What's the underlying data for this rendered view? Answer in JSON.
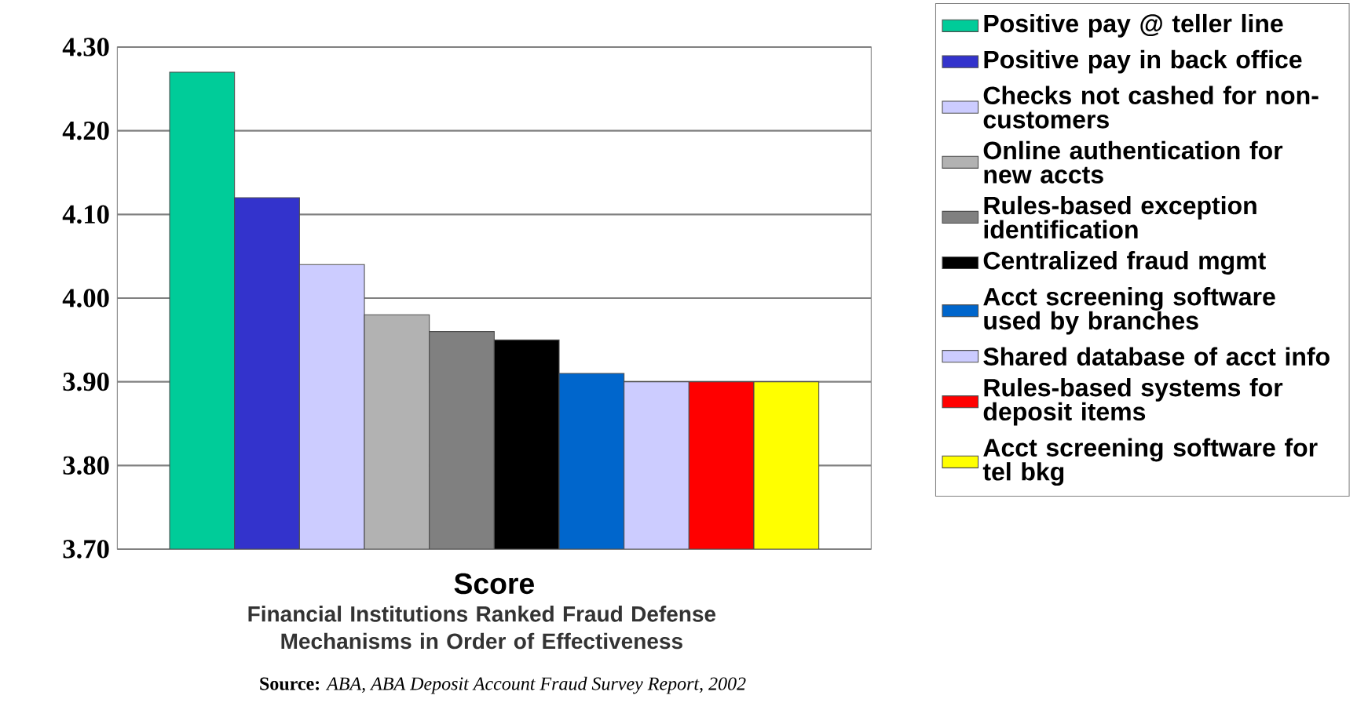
{
  "chart_data": {
    "type": "bar",
    "categories": [
      "Score"
    ],
    "series": [
      {
        "name": "Positive pay @ teller line",
        "color": "#00cc99",
        "values": [
          4.27
        ]
      },
      {
        "name": "Positive pay in back office",
        "color": "#3333cc",
        "values": [
          4.12
        ]
      },
      {
        "name": "Checks not cashed for non-customers",
        "color": "#ccccff",
        "values": [
          4.04
        ]
      },
      {
        "name": "Online authentication for new accts",
        "color": "#b2b2b2",
        "values": [
          3.98
        ]
      },
      {
        "name": "Rules-based exception identification",
        "color": "#808080",
        "values": [
          3.96
        ]
      },
      {
        "name": "Centralized fraud mgmt",
        "color": "#000000",
        "values": [
          3.95
        ]
      },
      {
        "name": "Acct screening software used by branches",
        "color": "#0066cc",
        "values": [
          3.91
        ]
      },
      {
        "name": "Shared database of acct info",
        "color": "#ccccff",
        "values": [
          3.9
        ]
      },
      {
        "name": "Rules-based systems for deposit items",
        "color": "#ff0000",
        "values": [
          3.9
        ]
      },
      {
        "name": "Acct screening software for tel bkg",
        "color": "#ffff00",
        "values": [
          3.9
        ]
      }
    ],
    "ylim": [
      3.7,
      4.3
    ],
    "yticks": [
      {
        "value": 3.7,
        "label": "3.70"
      },
      {
        "value": 3.8,
        "label": "3.80"
      },
      {
        "value": 3.9,
        "label": "3.90"
      },
      {
        "value": 4.0,
        "label": "4.00"
      },
      {
        "value": 4.1,
        "label": "4.10"
      },
      {
        "value": 4.2,
        "label": "4.20"
      },
      {
        "value": 4.3,
        "label": "4.30"
      }
    ],
    "grid": "y",
    "legend": "right",
    "annotations": [
      "Financial Institutions Ranked Fraud Defense Mechanisms in Order of Effectiveness",
      "**Source:** *ABA, ABA Deposit Account Fraud Survey Report, 2002*"
    ]
  }
}
